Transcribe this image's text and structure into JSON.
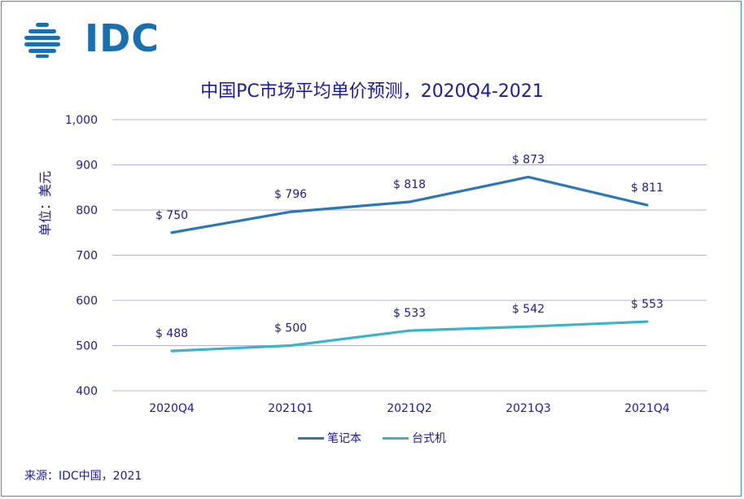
{
  "logo": {
    "text": "IDC"
  },
  "colors": {
    "axis_text": "#1c1c9a",
    "grid": "#b8b0e0",
    "notebook": "#2a78b8",
    "desktop": "#3cb4c8",
    "border": "#3a8fc0"
  },
  "chart_data": {
    "type": "line",
    "title": "中国PC市场平均单价预测，2020Q4-2021",
    "xlabel": "",
    "ylabel": "单位：美元",
    "ylim": [
      400,
      1000
    ],
    "yticks": [
      400,
      500,
      600,
      700,
      800,
      900,
      1000
    ],
    "ytick_labels": [
      "400",
      "500",
      "600",
      "700",
      "800",
      "900",
      "1,000"
    ],
    "categories": [
      "2020Q4",
      "2021Q1",
      "2021Q2",
      "2021Q3",
      "2021Q4"
    ],
    "grid": true,
    "legend_position": "bottom",
    "series": [
      {
        "name": "笔记本",
        "color": "#2a78b8",
        "values": [
          750,
          796,
          818,
          873,
          811
        ],
        "labels": [
          "$ 750",
          "$ 796",
          "$ 818",
          "$ 873",
          "$ 811"
        ]
      },
      {
        "name": "台式机",
        "color": "#3cb4c8",
        "values": [
          488,
          500,
          533,
          542,
          553
        ],
        "labels": [
          "$ 488",
          "$ 500",
          "$ 533",
          "$ 542",
          "$ 553"
        ]
      }
    ]
  },
  "source": "来源：IDC中国，2021"
}
